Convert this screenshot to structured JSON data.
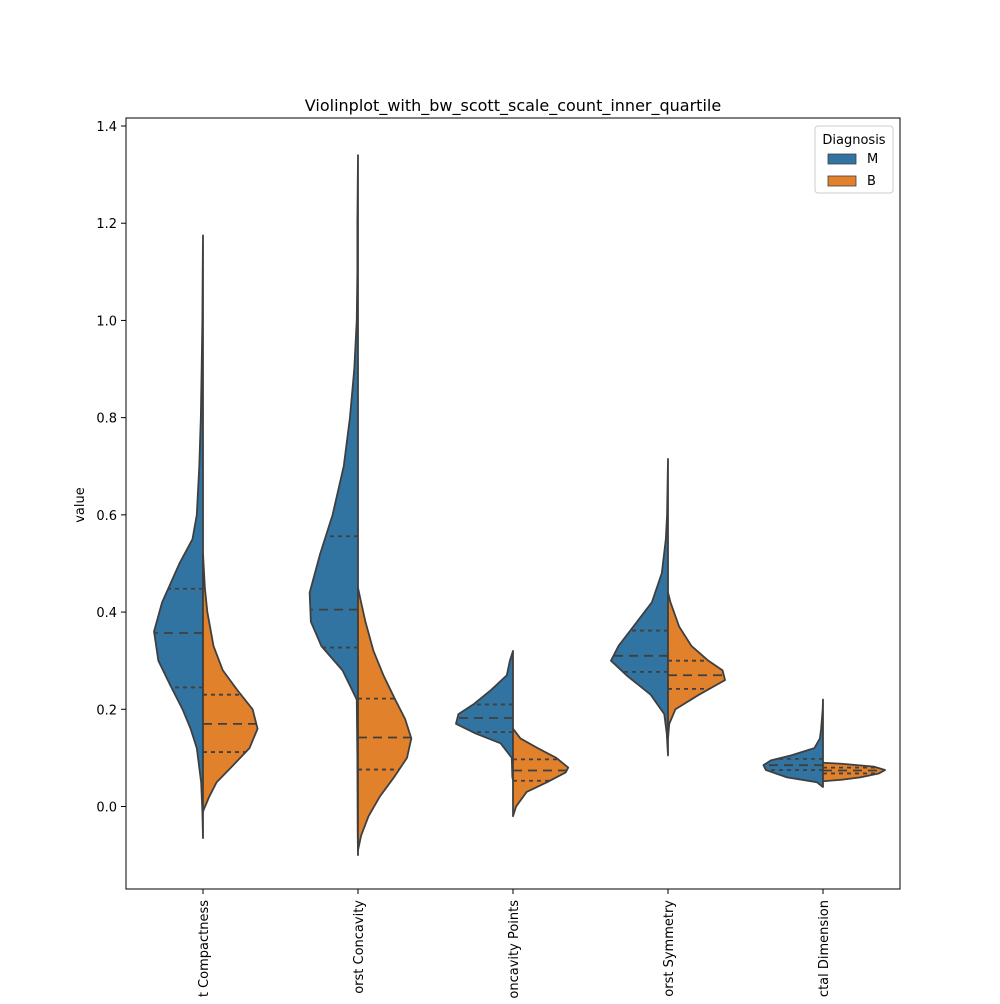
{
  "chart_data": {
    "type": "violin",
    "title": "Violinplot_with_bw_scott_scale_count_inner_quartile",
    "xlabel": "",
    "ylabel": "value",
    "ylim": [
      -0.17,
      1.415
    ],
    "yticks": [
      0.0,
      0.2,
      0.4,
      0.6,
      0.8,
      1.0,
      1.2,
      1.4
    ],
    "ytick_labels": [
      "0.0",
      "0.2",
      "0.4",
      "0.6",
      "0.8",
      "1.0",
      "1.2",
      "1.4"
    ],
    "categories": [
      "Worst Compactness",
      "Worst Concavity",
      "Worst Concavity Points",
      "Worst Symmetry",
      "Worst Fractal Dimension"
    ],
    "category_tick_labels": [
      "t Compactness",
      "orst Concavity",
      "oncavity Points",
      "orst Symmetry",
      "ctal Dimension"
    ],
    "split": true,
    "bandwidth": "scott",
    "scale": "count",
    "inner": "quartile",
    "legend": {
      "title": "Diagnosis",
      "position": "upper right",
      "entries": [
        {
          "label": "M",
          "color": "#3274a1"
        },
        {
          "label": "B",
          "color": "#e1812c"
        }
      ]
    },
    "series": [
      {
        "name": "M",
        "side": "left",
        "color": "#3274a1",
        "violins": [
          {
            "category": "Worst Compactness",
            "min": -0.065,
            "max": 1.175,
            "q1": 0.245,
            "median": 0.357,
            "q3": 0.448,
            "profile": [
              [
                -0.065,
                0
              ],
              [
                -0.01,
                0.01
              ],
              [
                0.05,
                0.03
              ],
              [
                0.12,
                0.1
              ],
              [
                0.16,
                0.2
              ],
              [
                0.2,
                0.33
              ],
              [
                0.25,
                0.53
              ],
              [
                0.3,
                0.72
              ],
              [
                0.36,
                0.79
              ],
              [
                0.42,
                0.66
              ],
              [
                0.5,
                0.38
              ],
              [
                0.55,
                0.17
              ],
              [
                0.6,
                0.1
              ],
              [
                0.7,
                0.06
              ],
              [
                0.8,
                0.035
              ],
              [
                0.9,
                0.022
              ],
              [
                1.0,
                0.01
              ],
              [
                1.1,
                0.005
              ],
              [
                1.175,
                0
              ]
            ]
          },
          {
            "category": "Worst Concavity",
            "min": -0.1,
            "max": 1.34,
            "q1": 0.327,
            "median": 0.405,
            "q3": 0.556,
            "profile": [
              [
                -0.1,
                0
              ],
              [
                -0.05,
                0.005
              ],
              [
                0.1,
                0.01
              ],
              [
                0.22,
                0.02
              ],
              [
                0.28,
                0.25
              ],
              [
                0.33,
                0.59
              ],
              [
                0.38,
                0.76
              ],
              [
                0.44,
                0.78
              ],
              [
                0.52,
                0.61
              ],
              [
                0.6,
                0.41
              ],
              [
                0.7,
                0.23
              ],
              [
                0.8,
                0.13
              ],
              [
                0.9,
                0.06
              ],
              [
                1.0,
                0.02
              ],
              [
                1.1,
                0.01
              ],
              [
                1.2,
                0.01
              ],
              [
                1.34,
                0
              ]
            ]
          },
          {
            "category": "Worst Concavity Points",
            "min": 0.055,
            "max": 0.32,
            "q1": 0.153,
            "median": 0.182,
            "q3": 0.21,
            "profile": [
              [
                0.055,
                0
              ],
              [
                0.06,
                0.01
              ],
              [
                0.1,
                0.02
              ],
              [
                0.13,
                0.2
              ],
              [
                0.15,
                0.6
              ],
              [
                0.17,
                0.92
              ],
              [
                0.19,
                0.88
              ],
              [
                0.21,
                0.64
              ],
              [
                0.24,
                0.35
              ],
              [
                0.27,
                0.1
              ],
              [
                0.3,
                0.05
              ],
              [
                0.32,
                0
              ]
            ]
          },
          {
            "category": "Worst Symmetry",
            "min": 0.105,
            "max": 0.715,
            "q1": 0.277,
            "median": 0.31,
            "q3": 0.362,
            "profile": [
              [
                0.105,
                0
              ],
              [
                0.15,
                0.02
              ],
              [
                0.19,
                0.06
              ],
              [
                0.23,
                0.28
              ],
              [
                0.27,
                0.67
              ],
              [
                0.3,
                0.92
              ],
              [
                0.33,
                0.8
              ],
              [
                0.37,
                0.56
              ],
              [
                0.42,
                0.26
              ],
              [
                0.48,
                0.1
              ],
              [
                0.55,
                0.035
              ],
              [
                0.6,
                0.015
              ],
              [
                0.715,
                0
              ]
            ]
          },
          {
            "category": "Worst Fractal Dimension",
            "min": 0.04,
            "max": 0.22,
            "q1": 0.075,
            "median": 0.085,
            "q3": 0.098,
            "profile": [
              [
                0.04,
                0
              ],
              [
                0.05,
                0.1
              ],
              [
                0.06,
                0.58
              ],
              [
                0.075,
                0.92
              ],
              [
                0.085,
                0.96
              ],
              [
                0.095,
                0.84
              ],
              [
                0.105,
                0.52
              ],
              [
                0.12,
                0.14
              ],
              [
                0.14,
                0.05
              ],
              [
                0.16,
                0.03
              ],
              [
                0.2,
                0.005
              ],
              [
                0.22,
                0
              ]
            ]
          }
        ]
      },
      {
        "name": "B",
        "side": "right",
        "color": "#e1812c",
        "violins": [
          {
            "category": "Worst Compactness",
            "min": -0.01,
            "max": 0.52,
            "q1": 0.112,
            "median": 0.17,
            "q3": 0.23,
            "profile": [
              [
                -0.01,
                0
              ],
              [
                0.02,
                0.1
              ],
              [
                0.05,
                0.22
              ],
              [
                0.08,
                0.45
              ],
              [
                0.12,
                0.75
              ],
              [
                0.16,
                0.88
              ],
              [
                0.2,
                0.8
              ],
              [
                0.24,
                0.55
              ],
              [
                0.28,
                0.32
              ],
              [
                0.33,
                0.17
              ],
              [
                0.4,
                0.07
              ],
              [
                0.45,
                0.03
              ],
              [
                0.52,
                0
              ]
            ]
          },
          {
            "category": "Worst Concavity",
            "min": -0.09,
            "max": 0.45,
            "q1": 0.076,
            "median": 0.142,
            "q3": 0.222,
            "profile": [
              [
                -0.09,
                0
              ],
              [
                -0.06,
                0.05
              ],
              [
                -0.02,
                0.17
              ],
              [
                0.02,
                0.35
              ],
              [
                0.06,
                0.58
              ],
              [
                0.1,
                0.79
              ],
              [
                0.14,
                0.86
              ],
              [
                0.18,
                0.76
              ],
              [
                0.22,
                0.6
              ],
              [
                0.27,
                0.41
              ],
              [
                0.32,
                0.25
              ],
              [
                0.38,
                0.12
              ],
              [
                0.42,
                0.05
              ],
              [
                0.45,
                0
              ]
            ]
          },
          {
            "category": "Worst Concavity Points",
            "min": -0.02,
            "max": 0.16,
            "q1": 0.053,
            "median": 0.074,
            "q3": 0.097,
            "profile": [
              [
                -0.02,
                0
              ],
              [
                0.0,
                0.05
              ],
              [
                0.03,
                0.22
              ],
              [
                0.05,
                0.55
              ],
              [
                0.07,
                0.85
              ],
              [
                0.08,
                0.89
              ],
              [
                0.1,
                0.7
              ],
              [
                0.12,
                0.4
              ],
              [
                0.14,
                0.12
              ],
              [
                0.16,
                0
              ]
            ]
          },
          {
            "category": "Worst Symmetry",
            "min": 0.14,
            "max": 0.44,
            "q1": 0.242,
            "median": 0.27,
            "q3": 0.3,
            "profile": [
              [
                0.14,
                0
              ],
              [
                0.17,
                0.02
              ],
              [
                0.2,
                0.12
              ],
              [
                0.23,
                0.5
              ],
              [
                0.26,
                0.92
              ],
              [
                0.28,
                0.88
              ],
              [
                0.3,
                0.65
              ],
              [
                0.33,
                0.38
              ],
              [
                0.37,
                0.18
              ],
              [
                0.42,
                0.04
              ],
              [
                0.44,
                0
              ]
            ]
          },
          {
            "category": "Worst Fractal Dimension",
            "min": 0.052,
            "max": 0.09,
            "q1": 0.068,
            "median": 0.074,
            "q3": 0.08,
            "profile": [
              [
                0.052,
                0
              ],
              [
                0.055,
                0.3
              ],
              [
                0.06,
                0.6
              ],
              [
                0.068,
                0.9
              ],
              [
                0.075,
                1.0
              ],
              [
                0.082,
                0.82
              ],
              [
                0.088,
                0.3
              ],
              [
                0.09,
                0
              ]
            ]
          }
        ]
      }
    ]
  }
}
